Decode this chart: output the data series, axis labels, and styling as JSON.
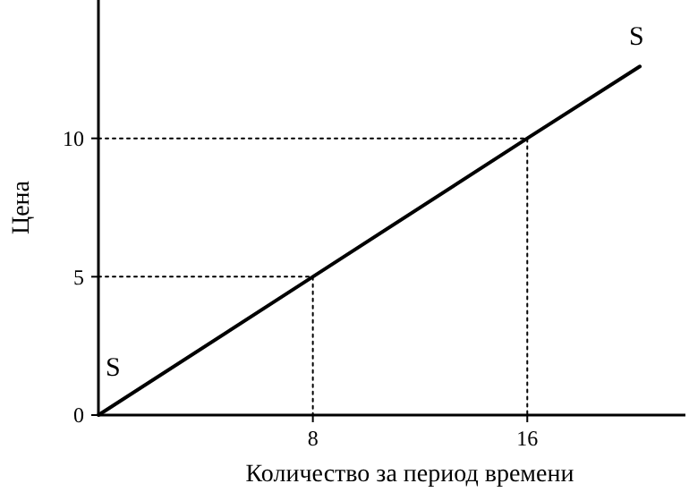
{
  "chart_data": {
    "type": "line",
    "xlabel": "Количество за период времени",
    "ylabel": "Цена",
    "xlim": [
      0,
      21.9
    ],
    "ylim": [
      0,
      15
    ],
    "xticks": [
      8,
      16
    ],
    "yticks": [
      0,
      5,
      10
    ],
    "grid": false,
    "marker": "none",
    "series": [
      {
        "name": "S",
        "color": "#000000",
        "x": [
          0,
          8,
          16,
          20.2
        ],
        "values": [
          0,
          5,
          10,
          12.6
        ],
        "line_style": "solid"
      },
      {
        "color": "#000000",
        "x": [
          0,
          8,
          8
        ],
        "values": [
          5,
          5,
          0
        ],
        "line_style": "dotted"
      },
      {
        "color": "#000000",
        "x": [
          0,
          16,
          16
        ],
        "values": [
          10,
          10,
          0
        ],
        "line_style": "dotted"
      }
    ]
  }
}
